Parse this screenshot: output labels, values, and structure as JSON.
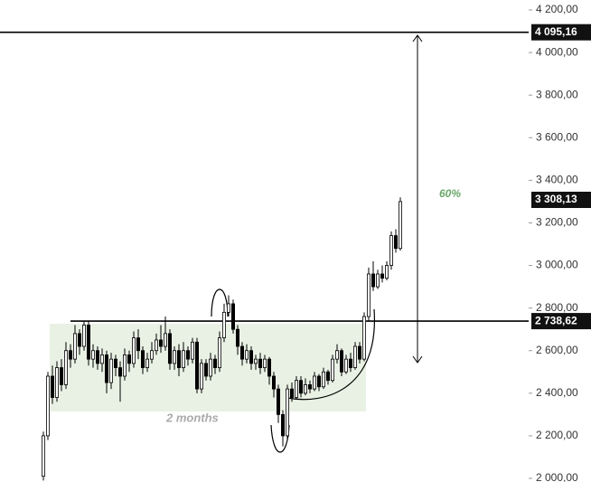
{
  "chart_data": {
    "type": "candlestick",
    "open": [
      2010,
      2200,
      2480,
      2380,
      2520,
      2440,
      2600,
      2560,
      2680,
      2620,
      2720,
      2560,
      2600,
      2540,
      2580,
      2450,
      2560,
      2520,
      2480,
      2580,
      2540,
      2660,
      2600,
      2520,
      2560,
      2600,
      2650,
      2620,
      2680,
      2540,
      2600,
      2520,
      2600,
      2560,
      2640,
      2420,
      2540,
      2480,
      2560,
      2520,
      2660,
      2780,
      2820,
      2700,
      2620,
      2560,
      2600,
      2540,
      2560,
      2520,
      2560,
      2480,
      2420,
      2300,
      2200,
      2420,
      2380,
      2460,
      2400,
      2440,
      2420,
      2480,
      2430,
      2500,
      2460,
      2560,
      2600,
      2500,
      2560,
      2520,
      2620,
      2560,
      2760,
      2960,
      2900,
      2960,
      2940,
      3000,
      3140,
      3080
    ],
    "high": [
      2220,
      2500,
      2530,
      2550,
      2560,
      2640,
      2630,
      2720,
      2700,
      2740,
      2740,
      2630,
      2620,
      2610,
      2600,
      2590,
      2580,
      2550,
      2610,
      2600,
      2690,
      2700,
      2620,
      2590,
      2640,
      2680,
      2720,
      2760,
      2700,
      2620,
      2630,
      2640,
      2620,
      2660,
      2660,
      2560,
      2560,
      2590,
      2580,
      2690,
      2820,
      2860,
      2840,
      2720,
      2640,
      2630,
      2620,
      2580,
      2590,
      2580,
      2570,
      2500,
      2440,
      2320,
      2440,
      2450,
      2480,
      2480,
      2470,
      2460,
      2500,
      2490,
      2520,
      2510,
      2580,
      2630,
      2610,
      2580,
      2590,
      2640,
      2640,
      2780,
      2990,
      3020,
      2980,
      3000,
      3020,
      3160,
      3170,
      3320
    ],
    "low": [
      1990,
      2180,
      2350,
      2360,
      2410,
      2420,
      2520,
      2540,
      2580,
      2600,
      2530,
      2520,
      2510,
      2500,
      2400,
      2420,
      2480,
      2360,
      2460,
      2500,
      2520,
      2560,
      2490,
      2500,
      2540,
      2580,
      2590,
      2600,
      2510,
      2510,
      2480,
      2500,
      2530,
      2540,
      2400,
      2400,
      2460,
      2460,
      2490,
      2500,
      2640,
      2760,
      2680,
      2580,
      2530,
      2540,
      2510,
      2510,
      2490,
      2500,
      2440,
      2380,
      2260,
      2150,
      2180,
      2360,
      2370,
      2380,
      2390,
      2400,
      2410,
      2410,
      2420,
      2440,
      2450,
      2540,
      2480,
      2490,
      2500,
      2510,
      2540,
      2550,
      2740,
      2880,
      2890,
      2920,
      2930,
      2980,
      3060,
      3070
    ],
    "close": [
      2200,
      2480,
      2380,
      2520,
      2440,
      2600,
      2560,
      2680,
      2620,
      2720,
      2560,
      2600,
      2540,
      2580,
      2450,
      2560,
      2520,
      2480,
      2580,
      2540,
      2660,
      2600,
      2520,
      2560,
      2600,
      2650,
      2620,
      2680,
      2540,
      2600,
      2520,
      2600,
      2560,
      2640,
      2420,
      2540,
      2480,
      2560,
      2520,
      2660,
      2780,
      2820,
      2700,
      2620,
      2560,
      2600,
      2540,
      2560,
      2520,
      2560,
      2480,
      2420,
      2300,
      2200,
      2420,
      2380,
      2460,
      2400,
      2440,
      2420,
      2480,
      2430,
      2500,
      2460,
      2560,
      2600,
      2500,
      2560,
      2520,
      2620,
      2560,
      2760,
      2960,
      2900,
      2960,
      2940,
      3000,
      3140,
      3080,
      3300
    ],
    "ylim": [
      2000,
      4200
    ],
    "yticks": [
      {
        "value": 2000,
        "label": "2 000,00"
      },
      {
        "value": 2200,
        "label": "2 200,00"
      },
      {
        "value": 2400,
        "label": "2 400,00"
      },
      {
        "value": 2600,
        "label": "2 600,00"
      },
      {
        "value": 2800,
        "label": "2 800,00"
      },
      {
        "value": 3000,
        "label": "3 000,00"
      },
      {
        "value": 3200,
        "label": "3 200,00"
      },
      {
        "value": 3400,
        "label": "3 400,00"
      },
      {
        "value": 3600,
        "label": "3 600,00"
      },
      {
        "value": 3800,
        "label": "3 800,00"
      },
      {
        "value": 4000,
        "label": "4 000,00"
      },
      {
        "value": 4200,
        "label": "4 200,00"
      }
    ],
    "levels": [
      {
        "value": 4095.16,
        "label": "4 095,16"
      },
      {
        "value": 2738.62,
        "label": "2 738,62"
      }
    ],
    "last_price": {
      "value": 3308.13,
      "label": "3 308,13"
    },
    "measure_label": "60%",
    "range_label": "2 months",
    "up_color": "#ffffff",
    "down_color": "#000000"
  }
}
